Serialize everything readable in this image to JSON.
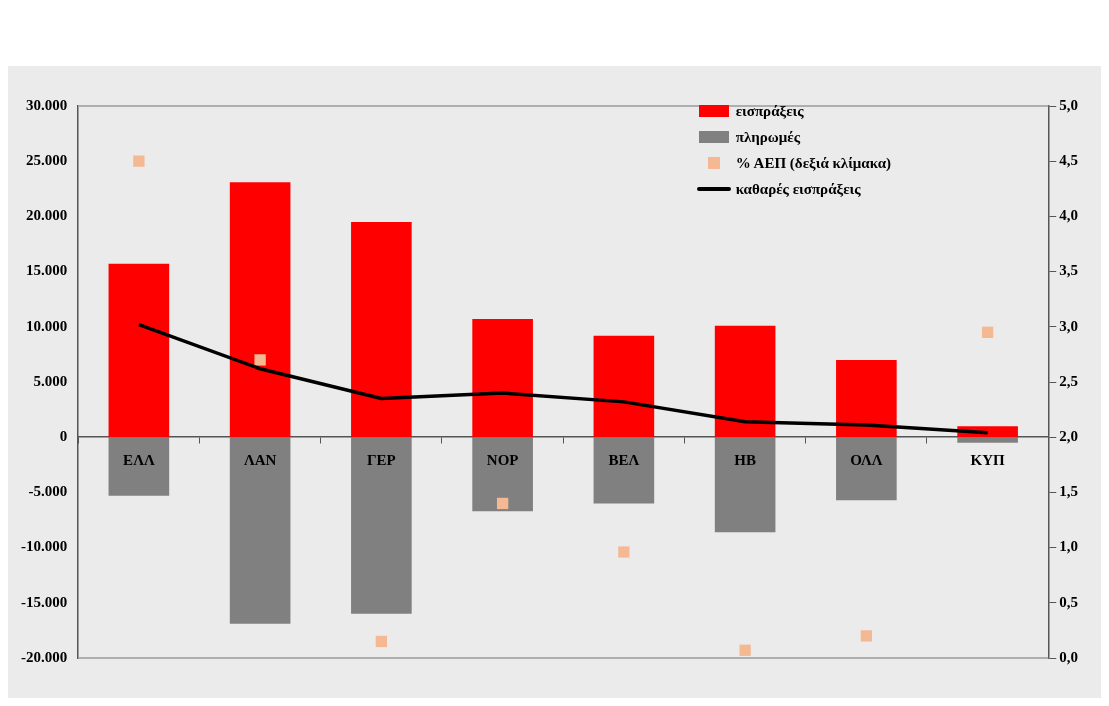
{
  "chart_data": {
    "type": "bar",
    "stacked": true,
    "categories": [
      "ΕΛΛ",
      "ΛΑΝ",
      "ΓΕΡ",
      "ΝΟΡ",
      "ΒΕΛ",
      "ΗΒ",
      "ΟΛΛ",
      "ΚΥΠ"
    ],
    "series": [
      {
        "name": "εισπράξεις",
        "color": "#ff0000",
        "values": [
          15700,
          23100,
          19500,
          10700,
          9200,
          10100,
          7000,
          1000
        ]
      },
      {
        "name": "πληρωμές",
        "color": "#808080",
        "values": [
          -5300,
          -16900,
          -16000,
          -6700,
          -6000,
          -8600,
          -5700,
          -500
        ]
      },
      {
        "name": "% ΑΕΠ (δεξιά κλίμακα)",
        "type": "scatter",
        "axis": "y2",
        "marker": "square",
        "color": "#f4b993",
        "values": [
          4.5,
          2.7,
          0.15,
          1.4,
          0.96,
          0.07,
          0.2,
          2.95
        ]
      },
      {
        "name": "καθαρές εισπράξεις",
        "type": "line",
        "marker": "none",
        "color": "#000000",
        "values": [
          10200,
          6200,
          3500,
          4000,
          3200,
          1400,
          1100,
          400
        ]
      }
    ],
    "ylim": [
      -20000,
      30000
    ],
    "yticks": [
      {
        "value": -20000,
        "label": "-20.000"
      },
      {
        "value": -15000,
        "label": "-15.000"
      },
      {
        "value": -10000,
        "label": "-10.000"
      },
      {
        "value": -5000,
        "label": "-5.000"
      },
      {
        "value": 0,
        "label": "0"
      },
      {
        "value": 5000,
        "label": "5.000"
      },
      {
        "value": 10000,
        "label": "10.000"
      },
      {
        "value": 15000,
        "label": "15.000"
      },
      {
        "value": 20000,
        "label": "20.000"
      },
      {
        "value": 25000,
        "label": "25.000"
      },
      {
        "value": 30000,
        "label": "30.000"
      }
    ],
    "y2lim": [
      0,
      5
    ],
    "y2ticks": [
      {
        "value": 0,
        "label": "0,0"
      },
      {
        "value": 0.5,
        "label": "0,5"
      },
      {
        "value": 1,
        "label": "1,0"
      },
      {
        "value": 1.5,
        "label": "1,5"
      },
      {
        "value": 2,
        "label": "2,0"
      },
      {
        "value": 2.5,
        "label": "2,5"
      },
      {
        "value": 3,
        "label": "3,0"
      },
      {
        "value": 3.5,
        "label": "3,5"
      },
      {
        "value": 4,
        "label": "4,0"
      },
      {
        "value": 4.5,
        "label": "4,5"
      },
      {
        "value": 5,
        "label": "5,0"
      }
    ],
    "grid": false,
    "legend": "top right"
  }
}
